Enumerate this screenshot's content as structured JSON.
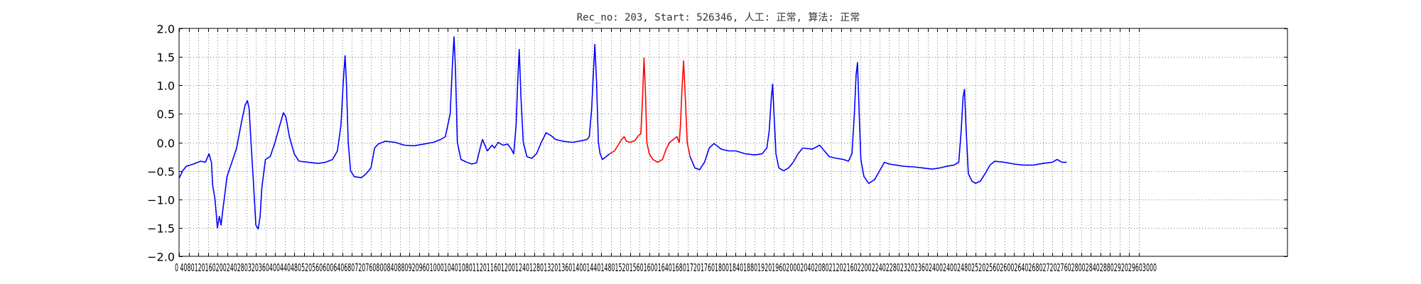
{
  "chart_data": {
    "type": "line",
    "title": "Rec_no: 203, Start: 526346, 人工: 正常, 算法: 正常",
    "xlabel": "",
    "ylabel": "",
    "xlim": [
      0,
      4620
    ],
    "ylim": [
      -2.0,
      2.0
    ],
    "grid": true,
    "grid_style": "dotted",
    "yticks": [
      2.0,
      1.5,
      1.0,
      0.5,
      0.0,
      -0.5,
      -1.0,
      -1.5,
      -2.0
    ],
    "ytick_labels": [
      "2.0",
      "1.5",
      "1.0",
      "0.5",
      "0.0",
      "−0.5",
      "−1.0",
      "−1.5",
      "−2.0"
    ],
    "xtick_step": 40,
    "xtick_max": 4000,
    "xtick_label_text": "0 4080120160200240280320360400440480520560600640680720760800840880920960100010401080112011601200124012801320136014001440148015201560160016401680172017601800184018801920196020002040208021202160220022402280232023602400240024802520256026002640268027202760280028402880292029603000",
    "colors": {
      "normal": "#0000ff",
      "highlight": "#ff0000",
      "axes": "#000000",
      "grid": "#808080"
    },
    "series": [
      {
        "color": "blue",
        "points": [
          [
            0,
            -0.63
          ],
          [
            15,
            -0.5
          ],
          [
            30,
            -0.42
          ],
          [
            60,
            -0.38
          ],
          [
            90,
            -0.33
          ],
          [
            110,
            -0.35
          ],
          [
            125,
            -0.2
          ],
          [
            135,
            -0.35
          ],
          [
            140,
            -0.75
          ],
          [
            150,
            -1.0
          ],
          [
            160,
            -1.5
          ],
          [
            168,
            -1.3
          ],
          [
            175,
            -1.45
          ],
          [
            185,
            -1.1
          ],
          [
            200,
            -0.6
          ],
          [
            220,
            -0.35
          ],
          [
            240,
            -0.1
          ],
          [
            260,
            0.35
          ],
          [
            275,
            0.65
          ],
          [
            285,
            0.73
          ],
          [
            292,
            0.6
          ],
          [
            300,
            0.0
          ],
          [
            310,
            -0.7
          ],
          [
            320,
            -1.45
          ],
          [
            330,
            -1.52
          ],
          [
            338,
            -1.3
          ],
          [
            345,
            -0.8
          ],
          [
            360,
            -0.3
          ],
          [
            380,
            -0.25
          ],
          [
            400,
            0.0
          ],
          [
            420,
            0.3
          ],
          [
            435,
            0.52
          ],
          [
            445,
            0.45
          ],
          [
            460,
            0.1
          ],
          [
            480,
            -0.2
          ],
          [
            500,
            -0.33
          ],
          [
            540,
            -0.35
          ],
          [
            580,
            -0.37
          ],
          [
            610,
            -0.35
          ],
          [
            640,
            -0.3
          ],
          [
            660,
            -0.15
          ],
          [
            675,
            0.3
          ],
          [
            685,
            1.1
          ],
          [
            692,
            1.52
          ],
          [
            698,
            1.0
          ],
          [
            705,
            0.0
          ],
          [
            715,
            -0.5
          ],
          [
            730,
            -0.6
          ],
          [
            760,
            -0.62
          ],
          [
            780,
            -0.55
          ],
          [
            800,
            -0.45
          ],
          [
            815,
            -0.1
          ],
          [
            830,
            -0.03
          ],
          [
            860,
            0.02
          ],
          [
            900,
            0.0
          ],
          [
            940,
            -0.05
          ],
          [
            980,
            -0.06
          ],
          [
            1020,
            -0.03
          ],
          [
            1060,
            0.0
          ],
          [
            1090,
            0.05
          ],
          [
            1110,
            0.1
          ],
          [
            1130,
            0.5
          ],
          [
            1140,
            1.4
          ],
          [
            1146,
            1.85
          ],
          [
            1152,
            1.3
          ],
          [
            1160,
            0.0
          ],
          [
            1175,
            -0.3
          ],
          [
            1200,
            -0.35
          ],
          [
            1220,
            -0.38
          ],
          [
            1240,
            -0.36
          ],
          [
            1255,
            -0.1
          ],
          [
            1265,
            0.05
          ],
          [
            1275,
            -0.05
          ],
          [
            1285,
            -0.15
          ],
          [
            1295,
            -0.1
          ],
          [
            1305,
            -0.05
          ],
          [
            1315,
            -0.1
          ],
          [
            1330,
            0.0
          ],
          [
            1350,
            -0.05
          ],
          [
            1370,
            -0.03
          ],
          [
            1385,
            -0.12
          ],
          [
            1395,
            -0.2
          ],
          [
            1405,
            0.3
          ],
          [
            1412,
            1.1
          ],
          [
            1418,
            1.63
          ],
          [
            1425,
            0.8
          ],
          [
            1435,
            0.0
          ],
          [
            1450,
            -0.25
          ],
          [
            1470,
            -0.28
          ],
          [
            1490,
            -0.2
          ],
          [
            1510,
            0.0
          ],
          [
            1530,
            0.17
          ],
          [
            1550,
            0.12
          ],
          [
            1570,
            0.05
          ],
          [
            1600,
            0.02
          ],
          [
            1640,
            0.0
          ],
          [
            1680,
            0.03
          ],
          [
            1700,
            0.05
          ],
          [
            1710,
            0.1
          ],
          [
            1720,
            0.6
          ],
          [
            1728,
            1.3
          ],
          [
            1733,
            1.72
          ],
          [
            1740,
            1.1
          ],
          [
            1748,
            0.0
          ],
          [
            1755,
            -0.2
          ],
          [
            1765,
            -0.3
          ],
          [
            1780,
            -0.25
          ],
          [
            1795,
            -0.2
          ]
        ]
      },
      {
        "color": "red",
        "points": [
          [
            1795,
            -0.2
          ],
          [
            1815,
            -0.15
          ],
          [
            1830,
            -0.05
          ],
          [
            1845,
            0.05
          ],
          [
            1855,
            0.1
          ],
          [
            1865,
            0.02
          ],
          [
            1880,
            0.0
          ],
          [
            1900,
            0.03
          ],
          [
            1915,
            0.12
          ],
          [
            1925,
            0.15
          ],
          [
            1932,
            0.8
          ],
          [
            1938,
            1.48
          ],
          [
            1944,
            0.9
          ],
          [
            1950,
            0.0
          ],
          [
            1960,
            -0.2
          ],
          [
            1975,
            -0.3
          ],
          [
            1995,
            -0.35
          ],
          [
            2015,
            -0.3
          ],
          [
            2030,
            -0.12
          ],
          [
            2045,
            0.0
          ],
          [
            2060,
            0.05
          ],
          [
            2075,
            0.1
          ],
          [
            2085,
            0.0
          ],
          [
            2090,
            0.3
          ],
          [
            2097,
            1.0
          ],
          [
            2103,
            1.43
          ],
          [
            2110,
            0.8
          ],
          [
            2118,
            0.0
          ],
          [
            2130,
            -0.25
          ]
        ]
      },
      {
        "color": "blue",
        "points": [
          [
            2130,
            -0.25
          ],
          [
            2150,
            -0.45
          ],
          [
            2170,
            -0.48
          ],
          [
            2190,
            -0.35
          ],
          [
            2210,
            -0.1
          ],
          [
            2230,
            -0.02
          ],
          [
            2260,
            -0.12
          ],
          [
            2290,
            -0.15
          ],
          [
            2320,
            -0.15
          ],
          [
            2360,
            -0.2
          ],
          [
            2400,
            -0.22
          ],
          [
            2430,
            -0.2
          ],
          [
            2450,
            -0.1
          ],
          [
            2460,
            0.2
          ],
          [
            2468,
            0.75
          ],
          [
            2474,
            1.02
          ],
          [
            2480,
            0.5
          ],
          [
            2488,
            -0.2
          ],
          [
            2500,
            -0.45
          ],
          [
            2520,
            -0.5
          ],
          [
            2540,
            -0.45
          ],
          [
            2560,
            -0.35
          ],
          [
            2580,
            -0.2
          ],
          [
            2600,
            -0.1
          ],
          [
            2640,
            -0.12
          ],
          [
            2670,
            -0.05
          ],
          [
            2690,
            -0.15
          ],
          [
            2710,
            -0.25
          ],
          [
            2740,
            -0.28
          ],
          [
            2770,
            -0.3
          ],
          [
            2790,
            -0.33
          ],
          [
            2805,
            -0.2
          ],
          [
            2815,
            0.5
          ],
          [
            2822,
            1.18
          ],
          [
            2828,
            1.4
          ],
          [
            2835,
            0.5
          ],
          [
            2842,
            -0.3
          ],
          [
            2855,
            -0.6
          ],
          [
            2875,
            -0.72
          ],
          [
            2900,
            -0.65
          ],
          [
            2920,
            -0.5
          ],
          [
            2940,
            -0.35
          ],
          [
            2960,
            -0.38
          ],
          [
            2990,
            -0.4
          ],
          [
            3020,
            -0.42
          ],
          [
            3060,
            -0.43
          ],
          [
            3100,
            -0.45
          ],
          [
            3140,
            -0.47
          ],
          [
            3170,
            -0.45
          ],
          [
            3200,
            -0.42
          ],
          [
            3230,
            -0.4
          ],
          [
            3250,
            -0.35
          ],
          [
            3260,
            0.2
          ],
          [
            3268,
            0.8
          ],
          [
            3274,
            0.93
          ],
          [
            3280,
            0.3
          ],
          [
            3290,
            -0.55
          ],
          [
            3305,
            -0.68
          ],
          [
            3320,
            -0.72
          ],
          [
            3340,
            -0.68
          ],
          [
            3360,
            -0.55
          ],
          [
            3380,
            -0.4
          ],
          [
            3400,
            -0.33
          ],
          [
            3440,
            -0.35
          ],
          [
            3480,
            -0.38
          ],
          [
            3520,
            -0.4
          ],
          [
            3560,
            -0.4
          ],
          [
            3600,
            -0.37
          ],
          [
            3640,
            -0.35
          ],
          [
            3660,
            -0.3
          ],
          [
            3680,
            -0.35
          ],
          [
            3700,
            -0.35
          ]
        ]
      }
    ]
  }
}
